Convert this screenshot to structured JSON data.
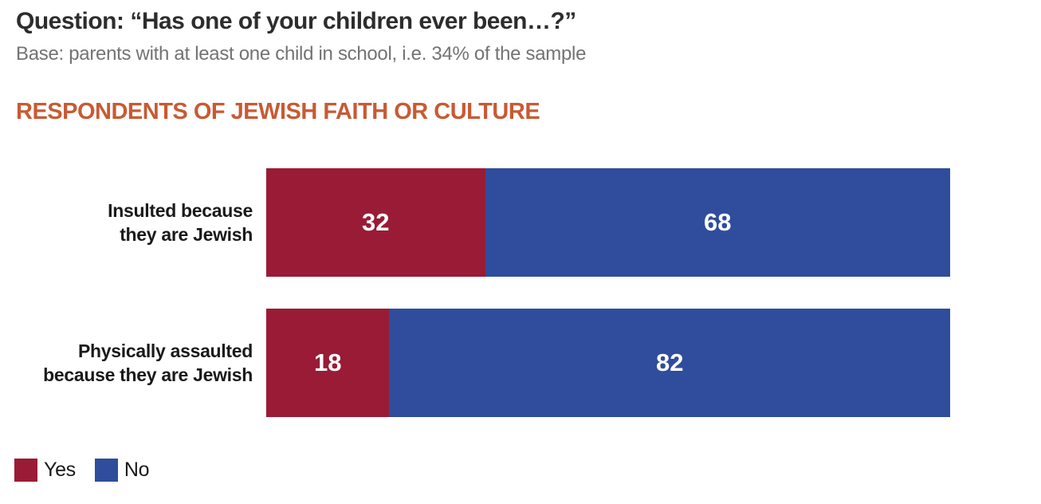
{
  "header": {
    "question": "Question: “Has one of your children ever been…?”",
    "base": "Base: parents with at least one child in school, i.e. 34% of the sample",
    "section_title": "RESPONDENTS OF JEWISH FAITH OR CULTURE"
  },
  "colors": {
    "accent_orange": "#C85A33",
    "yes_red": "#9A1B35",
    "no_blue": "#2F4D9C",
    "title_text": "#2d2d2d",
    "subtitle_text": "#737373",
    "bar_value_text": "#ffffff"
  },
  "chart_data": {
    "type": "bar",
    "orientation": "horizontal",
    "stacked": true,
    "categories": [
      "Insulted because they are Jewish",
      "Physically assaulted because they are Jewish"
    ],
    "series": [
      {
        "name": "Yes",
        "color": "#9A1B35",
        "values": [
          32,
          18
        ]
      },
      {
        "name": "No",
        "color": "#2F4D9C",
        "values": [
          68,
          82
        ]
      }
    ],
    "xlim": [
      0,
      100
    ],
    "value_labels_shown": true,
    "grid": false,
    "legend_position": "bottom-left"
  },
  "rows": [
    {
      "label_line1": "Insulted because",
      "label_line2": "they are Jewish",
      "yes_value": 32,
      "no_value": 68
    },
    {
      "label_line1": "Physically assaulted",
      "label_line2": "because they are Jewish",
      "yes_value": 18,
      "no_value": 82
    }
  ],
  "legend": {
    "yes_label": "Yes",
    "no_label": "No"
  }
}
